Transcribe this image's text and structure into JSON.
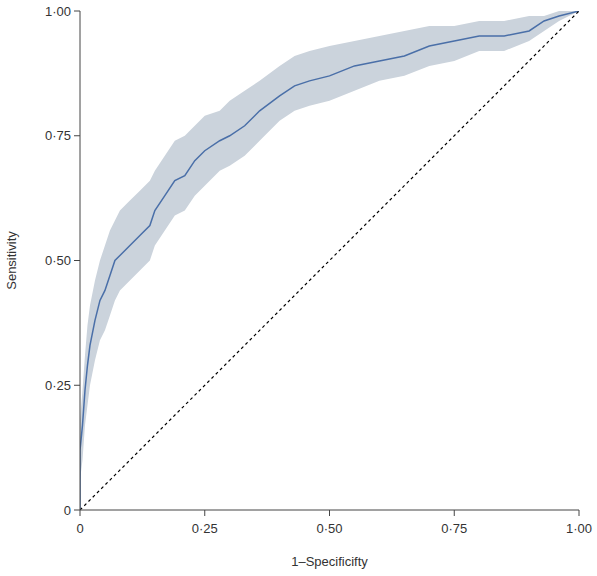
{
  "chart_data": {
    "type": "line",
    "x_label": "1–Specificifty",
    "y_label": "Sensitivity",
    "xlim": [
      0,
      1
    ],
    "ylim": [
      0,
      1
    ],
    "xticks": [
      0,
      {
        "value": 0.25,
        "label": "0·25"
      },
      {
        "value": 0.5,
        "label": "0·50"
      },
      {
        "value": 0.75,
        "label": "0·75"
      },
      {
        "value": 1,
        "label": "1·00"
      }
    ],
    "yticks": [
      0,
      {
        "value": 0.25,
        "label": "0·25"
      },
      {
        "value": 0.5,
        "label": "0·50"
      },
      {
        "value": 0.75,
        "label": "0·75"
      },
      {
        "value": 1,
        "label": "1·00"
      }
    ],
    "grid": false,
    "series": [
      {
        "color": "#4a6fa8",
        "line_style": "solid",
        "x": [
          0,
          0,
          0.005,
          0.01,
          0.015,
          0.02,
          0.03,
          0.04,
          0.05,
          0.06,
          0.07,
          0.08,
          0.1,
          0.12,
          0.14,
          0.15,
          0.17,
          0.19,
          0.21,
          0.23,
          0.25,
          0.28,
          0.3,
          0.33,
          0.36,
          0.4,
          0.43,
          0.46,
          0.5,
          0.55,
          0.6,
          0.65,
          0.7,
          0.75,
          0.8,
          0.85,
          0.9,
          0.93,
          0.96,
          1.0
        ],
        "values": [
          0,
          0.12,
          0.17,
          0.24,
          0.29,
          0.33,
          0.38,
          0.42,
          0.44,
          0.47,
          0.5,
          0.51,
          0.53,
          0.55,
          0.57,
          0.6,
          0.63,
          0.66,
          0.67,
          0.7,
          0.72,
          0.74,
          0.75,
          0.77,
          0.8,
          0.83,
          0.85,
          0.86,
          0.87,
          0.89,
          0.9,
          0.91,
          0.93,
          0.94,
          0.95,
          0.95,
          0.96,
          0.98,
          0.99,
          1.0
        ],
        "ci_lower": [
          0,
          0.06,
          0.1,
          0.17,
          0.21,
          0.25,
          0.3,
          0.34,
          0.36,
          0.39,
          0.42,
          0.44,
          0.46,
          0.48,
          0.5,
          0.53,
          0.56,
          0.59,
          0.6,
          0.63,
          0.65,
          0.68,
          0.69,
          0.71,
          0.74,
          0.78,
          0.8,
          0.81,
          0.82,
          0.84,
          0.86,
          0.87,
          0.89,
          0.9,
          0.92,
          0.92,
          0.94,
          0.96,
          0.98,
          1.0
        ],
        "ci_upper": [
          0,
          0.18,
          0.24,
          0.31,
          0.37,
          0.41,
          0.46,
          0.5,
          0.53,
          0.56,
          0.58,
          0.6,
          0.62,
          0.64,
          0.66,
          0.68,
          0.71,
          0.74,
          0.75,
          0.77,
          0.79,
          0.8,
          0.82,
          0.84,
          0.86,
          0.89,
          0.91,
          0.92,
          0.93,
          0.94,
          0.95,
          0.96,
          0.97,
          0.97,
          0.98,
          0.98,
          0.99,
          0.99,
          1.0,
          1.0
        ]
      },
      {
        "color": "#000000",
        "line_style": "dashed",
        "x": [
          0,
          1
        ],
        "values": [
          0,
          1
        ]
      }
    ]
  }
}
